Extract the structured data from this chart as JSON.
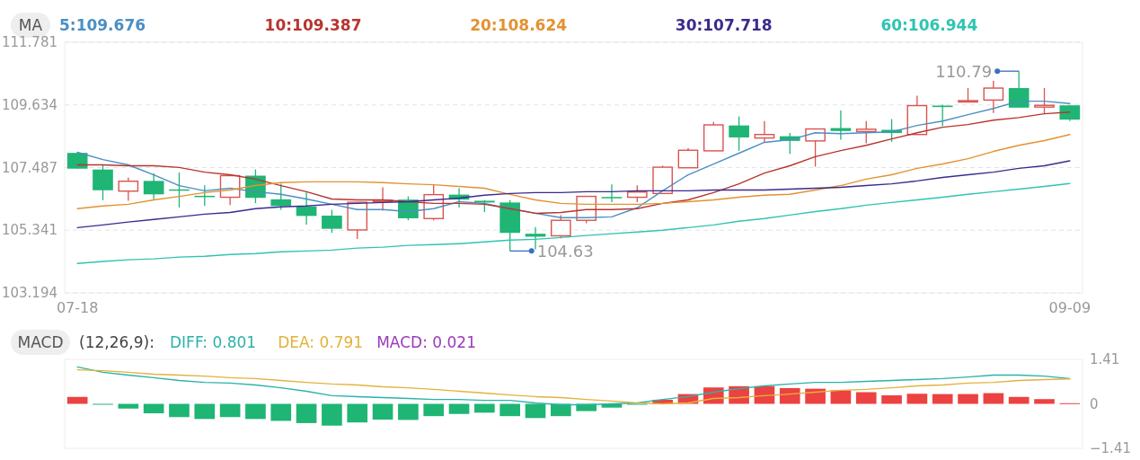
{
  "chart_data": [
    {
      "type": "candlestick",
      "legend_title": "MA",
      "legend": "top left",
      "grid": "y",
      "categories": [
        "07-18",
        null,
        null,
        null,
        null,
        null,
        null,
        null,
        null,
        null,
        null,
        null,
        null,
        null,
        null,
        null,
        null,
        null,
        null,
        null,
        null,
        null,
        null,
        null,
        null,
        null,
        null,
        null,
        null,
        null,
        null,
        null,
        null,
        null,
        null,
        null,
        null,
        null,
        null,
        "09-09"
      ],
      "ylim": [
        103.194,
        111.781
      ],
      "yticks": [
        111.781,
        109.634,
        107.487,
        105.341,
        103.194
      ],
      "annotations": [
        "104.63",
        "110.79"
      ],
      "series": [
        {
          "type": "candlestick",
          "ohlc": [
            [
              107.99,
              108.0,
              107.45,
              107.45
            ],
            [
              107.42,
              107.58,
              106.37,
              106.71
            ],
            [
              106.68,
              107.14,
              106.35,
              107.02
            ],
            [
              107.03,
              107.29,
              106.4,
              106.57
            ],
            [
              106.74,
              107.32,
              106.12,
              106.7
            ],
            [
              106.52,
              106.88,
              106.17,
              106.48
            ],
            [
              106.47,
              107.21,
              106.2,
              107.21
            ],
            [
              107.21,
              107.42,
              106.27,
              106.45
            ],
            [
              106.4,
              106.93,
              106.04,
              106.17
            ],
            [
              106.15,
              106.63,
              105.53,
              105.83
            ],
            [
              105.84,
              106.04,
              105.25,
              105.39
            ],
            [
              105.35,
              106.3,
              105.04,
              106.3
            ],
            [
              106.32,
              106.81,
              106.01,
              106.37
            ],
            [
              106.39,
              106.5,
              105.68,
              105.75
            ],
            [
              105.74,
              106.9,
              105.68,
              106.56
            ],
            [
              106.56,
              106.78,
              106.12,
              106.39
            ],
            [
              106.35,
              106.37,
              105.96,
              106.29
            ],
            [
              106.29,
              106.37,
              104.63,
              105.25
            ],
            [
              105.22,
              105.45,
              104.69,
              105.12
            ],
            [
              105.15,
              105.86,
              105.06,
              105.68
            ],
            [
              105.68,
              106.5,
              105.58,
              106.5
            ],
            [
              106.48,
              106.91,
              106.3,
              106.46
            ],
            [
              106.47,
              106.88,
              106.3,
              106.65
            ],
            [
              106.6,
              107.55,
              106.6,
              107.5
            ],
            [
              107.48,
              108.16,
              107.48,
              108.08
            ],
            [
              108.06,
              109.05,
              108.06,
              108.95
            ],
            [
              108.93,
              109.24,
              108.06,
              108.52
            ],
            [
              108.5,
              109.08,
              108.34,
              108.62
            ],
            [
              108.56,
              108.67,
              107.96,
              108.4
            ],
            [
              108.4,
              108.81,
              107.52,
              108.81
            ],
            [
              108.84,
              109.44,
              108.44,
              108.74
            ],
            [
              108.72,
              109.08,
              108.32,
              108.8
            ],
            [
              108.78,
              109.15,
              108.37,
              108.67
            ],
            [
              108.62,
              109.95,
              108.62,
              109.61
            ],
            [
              109.61,
              109.64,
              108.91,
              109.56
            ],
            [
              109.76,
              110.21,
              109.75,
              109.78
            ],
            [
              109.8,
              110.46,
              109.36,
              110.21
            ],
            [
              110.21,
              110.79,
              109.54,
              109.54
            ],
            [
              109.56,
              110.21,
              109.34,
              109.62
            ],
            [
              109.62,
              109.62,
              109.08,
              109.13
            ]
          ],
          "colors": [
            "#1fb574",
            "#1fb574",
            "#d9534f",
            "#1fb574",
            "#1fb574",
            "#1fb574",
            "#d9534f",
            "#1fb574",
            "#1fb574",
            "#1fb574",
            "#1fb574",
            "#d9534f",
            "#d9534f",
            "#1fb574",
            "#d9534f",
            "#1fb574",
            "#1fb574",
            "#1fb574",
            "#1fb574",
            "#d9534f",
            "#d9534f",
            "#1fb574",
            "#d9534f",
            "#d9534f",
            "#d9534f",
            "#d9534f",
            "#1fb574",
            "#d9534f",
            "#1fb574",
            "#d9534f",
            "#1fb574",
            "#d9534f",
            "#1fb574",
            "#d9534f",
            "#1fb574",
            "#d9534f",
            "#d9534f",
            "#1fb574",
            "#d9534f",
            "#1fb574"
          ]
        },
        {
          "type": "line",
          "name": "5:109.676",
          "color": "#4a8fc4",
          "values": [
            108.01,
            107.76,
            107.58,
            107.24,
            106.87,
            106.69,
            106.78,
            106.66,
            106.57,
            106.41,
            106.23,
            106.05,
            106.05,
            105.98,
            106.08,
            106.32,
            106.26,
            106.08,
            105.92,
            105.77,
            105.77,
            105.8,
            106.11,
            106.69,
            107.24,
            107.61,
            107.98,
            108.35,
            108.44,
            108.68,
            108.65,
            108.68,
            108.71,
            108.93,
            109.08,
            109.3,
            109.51,
            109.76,
            109.76,
            109.68
          ]
        },
        {
          "type": "line",
          "name": "10:109.387",
          "color": "#b8352f",
          "values": [
            107.58,
            107.58,
            107.55,
            107.55,
            107.49,
            107.33,
            107.24,
            107.09,
            106.87,
            106.66,
            106.41,
            106.38,
            106.38,
            106.32,
            106.26,
            106.26,
            106.23,
            106.08,
            105.92,
            105.95,
            106.05,
            106.05,
            106.08,
            106.26,
            106.38,
            106.63,
            106.93,
            107.3,
            107.55,
            107.86,
            108.07,
            108.25,
            108.47,
            108.68,
            108.87,
            108.96,
            109.11,
            109.2,
            109.33,
            109.39
          ]
        },
        {
          "type": "line",
          "name": "20:108.624",
          "color": "#e39232",
          "values": [
            106.08,
            106.17,
            106.23,
            106.38,
            106.5,
            106.63,
            106.72,
            106.87,
            106.97,
            107.0,
            107.0,
            107.0,
            106.97,
            106.93,
            106.9,
            106.84,
            106.78,
            106.57,
            106.38,
            106.26,
            106.23,
            106.23,
            106.23,
            106.26,
            106.32,
            106.38,
            106.47,
            106.54,
            106.57,
            106.72,
            106.87,
            107.09,
            107.24,
            107.46,
            107.61,
            107.79,
            108.04,
            108.25,
            108.41,
            108.62
          ]
        },
        {
          "type": "line",
          "name": "30:107.718",
          "color": "#3b2a8f",
          "values": [
            105.43,
            105.52,
            105.62,
            105.71,
            105.8,
            105.89,
            105.95,
            106.08,
            106.14,
            106.17,
            106.23,
            106.26,
            106.29,
            106.32,
            106.38,
            106.44,
            106.54,
            106.6,
            106.63,
            106.63,
            106.66,
            106.66,
            106.69,
            106.69,
            106.69,
            106.72,
            106.72,
            106.72,
            106.75,
            106.78,
            106.81,
            106.87,
            106.93,
            107.03,
            107.15,
            107.24,
            107.33,
            107.46,
            107.55,
            107.72
          ]
        },
        {
          "type": "line",
          "name": "60:106.944",
          "color": "#2fc4b2",
          "values": [
            104.2,
            104.27,
            104.33,
            104.36,
            104.42,
            104.45,
            104.51,
            104.54,
            104.6,
            104.63,
            104.66,
            104.73,
            104.76,
            104.82,
            104.85,
            104.88,
            104.94,
            105.0,
            105.03,
            105.09,
            105.16,
            105.22,
            105.28,
            105.34,
            105.43,
            105.52,
            105.65,
            105.74,
            105.86,
            105.98,
            106.08,
            106.2,
            106.29,
            106.38,
            106.47,
            106.57,
            106.66,
            106.75,
            106.84,
            106.94
          ]
        }
      ]
    },
    {
      "type": "bar",
      "legend_title": "MACD",
      "subtitle": "(12,26,9):",
      "legend": "top left",
      "categories": [
        null,
        null,
        null,
        null,
        null,
        null,
        null,
        null,
        null,
        null,
        null,
        null,
        null,
        null,
        null,
        null,
        null,
        null,
        null,
        null,
        null,
        null,
        null,
        null,
        null,
        null,
        null,
        null,
        null,
        null,
        null,
        null,
        null,
        null,
        null,
        null,
        null,
        null,
        null,
        null
      ],
      "ylim": [
        -1.41,
        1.41
      ],
      "yticks": [
        1.41,
        0,
        {
          "value": -1.41,
          "label": "−1.41"
        }
      ],
      "annotations": [
        "MACD: 0.021"
      ],
      "series": [
        {
          "type": "line",
          "name": "DIFF: 0.801",
          "color": "#2bb3a8",
          "values": [
            1.17,
            1.0,
            0.91,
            0.83,
            0.74,
            0.68,
            0.66,
            0.6,
            0.51,
            0.4,
            0.26,
            0.23,
            0.2,
            0.17,
            0.14,
            0.14,
            0.11,
            0.11,
            0.03,
            -0.03,
            -0.03,
            0.0,
            0.03,
            0.14,
            0.23,
            0.37,
            0.48,
            0.57,
            0.63,
            0.68,
            0.68,
            0.71,
            0.74,
            0.77,
            0.8,
            0.85,
            0.91,
            0.91,
            0.88,
            0.8
          ]
        },
        {
          "type": "line",
          "name": "DEA: 0.791",
          "color": "#e3b23c",
          "values": [
            1.08,
            1.05,
            1.0,
            0.94,
            0.91,
            0.88,
            0.83,
            0.8,
            0.74,
            0.68,
            0.63,
            0.6,
            0.54,
            0.51,
            0.46,
            0.4,
            0.34,
            0.28,
            0.23,
            0.2,
            0.14,
            0.09,
            0.03,
            0.0,
            0.03,
            0.17,
            0.2,
            0.26,
            0.31,
            0.37,
            0.43,
            0.46,
            0.51,
            0.57,
            0.6,
            0.66,
            0.68,
            0.74,
            0.77,
            0.79
          ]
        },
        {
          "type": "bar",
          "values": [
            0.22,
            -0.01,
            -0.15,
            -0.3,
            -0.42,
            -0.48,
            -0.42,
            -0.48,
            -0.54,
            -0.61,
            -0.69,
            -0.59,
            -0.5,
            -0.51,
            -0.39,
            -0.32,
            -0.28,
            -0.39,
            -0.45,
            -0.39,
            -0.23,
            -0.12,
            -0.01,
            0.13,
            0.31,
            0.52,
            0.56,
            0.56,
            0.5,
            0.48,
            0.43,
            0.37,
            0.27,
            0.32,
            0.31,
            0.31,
            0.34,
            0.22,
            0.15,
            0.02
          ],
          "colors": [
            "#ec4242",
            "#1fb574",
            "#1fb574",
            "#1fb574",
            "#1fb574",
            "#1fb574",
            "#1fb574",
            "#1fb574",
            "#1fb574",
            "#1fb574",
            "#1fb574",
            "#1fb574",
            "#1fb574",
            "#1fb574",
            "#1fb574",
            "#1fb574",
            "#1fb574",
            "#1fb574",
            "#1fb574",
            "#1fb574",
            "#1fb574",
            "#1fb574",
            "#1fb574",
            "#ec4242",
            "#ec4242",
            "#ec4242",
            "#ec4242",
            "#ec4242",
            "#ec4242",
            "#ec4242",
            "#ec4242",
            "#ec4242",
            "#ec4242",
            "#ec4242",
            "#ec4242",
            "#ec4242",
            "#ec4242",
            "#ec4242",
            "#ec4242",
            "#ec4242"
          ]
        }
      ]
    }
  ]
}
